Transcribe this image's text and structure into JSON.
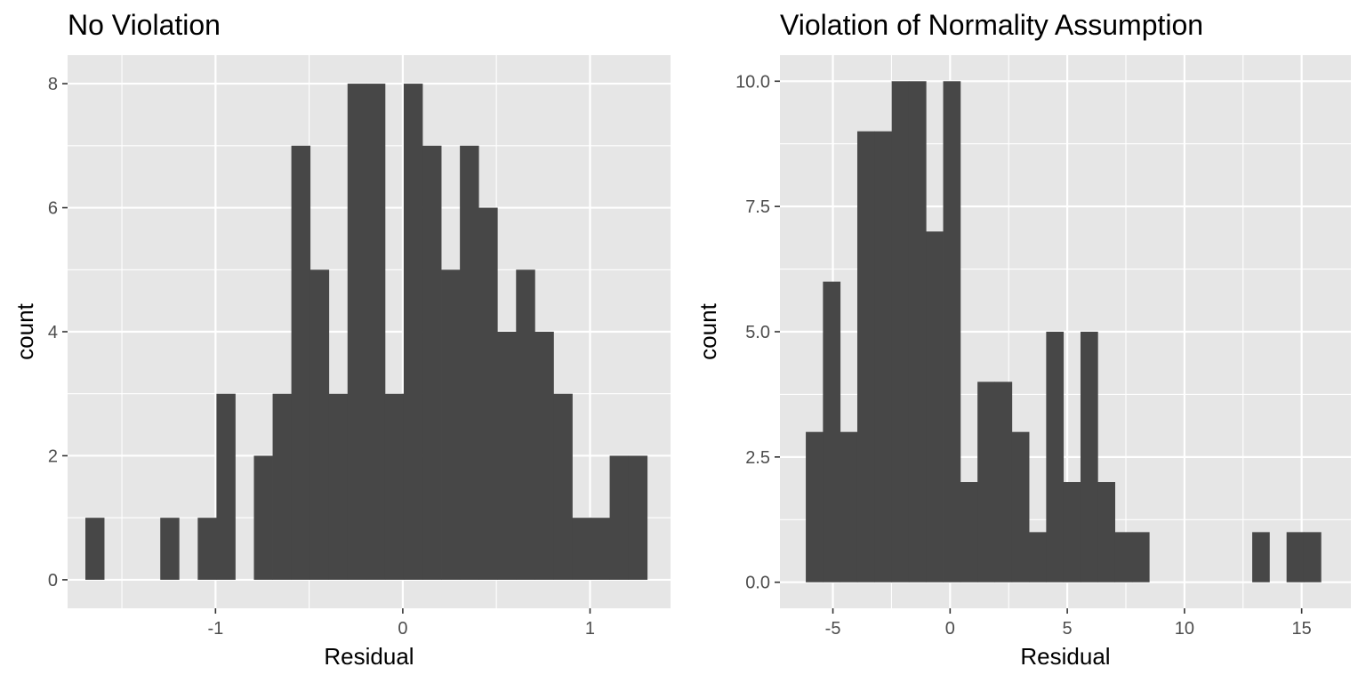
{
  "chart_data": [
    {
      "type": "bar",
      "title": "No Violation",
      "xlabel": "Residual",
      "ylabel": "count",
      "xlim": [
        -1.79,
        1.43
      ],
      "ylim": [
        -0.46,
        8.46
      ],
      "x_ticks": [
        -1,
        0,
        1
      ],
      "x_tick_labels": [
        "-1",
        "0",
        "1"
      ],
      "y_ticks": [
        0,
        2,
        4,
        6,
        8
      ],
      "y_tick_labels": [
        "0",
        "2",
        "4",
        "6",
        "8"
      ],
      "grid": true,
      "bin_start": -1.695,
      "bin_width": 0.1,
      "values": [
        1,
        0,
        0,
        0,
        1,
        0,
        1,
        3,
        0,
        2,
        3,
        7,
        5,
        3,
        8,
        8,
        3,
        8,
        7,
        5,
        7,
        6,
        4,
        5,
        4,
        3,
        1,
        1,
        2,
        2
      ]
    },
    {
      "type": "bar",
      "title": "Violation of Normality Assumption",
      "xlabel": "Residual",
      "ylabel": "count",
      "xlim": [
        -7.26,
        17.1
      ],
      "ylim": [
        -0.52,
        10.52
      ],
      "x_ticks": [
        -5,
        0,
        5,
        10,
        15
      ],
      "x_tick_labels": [
        "-5",
        "0",
        "5",
        "10",
        "15"
      ],
      "y_ticks": [
        0,
        2.5,
        5,
        7.5,
        10
      ],
      "y_tick_labels": [
        "0.0",
        "2.5",
        "5.0",
        "7.5",
        "10.0"
      ],
      "grid": true,
      "bin_start": -6.157,
      "bin_width": 0.7326,
      "values": [
        3,
        6,
        3,
        9,
        9,
        10,
        10,
        7,
        10,
        2,
        4,
        4,
        3,
        1,
        5,
        2,
        5,
        2,
        1,
        1,
        0,
        0,
        0,
        0,
        0,
        0,
        1,
        0,
        1,
        1
      ]
    }
  ]
}
